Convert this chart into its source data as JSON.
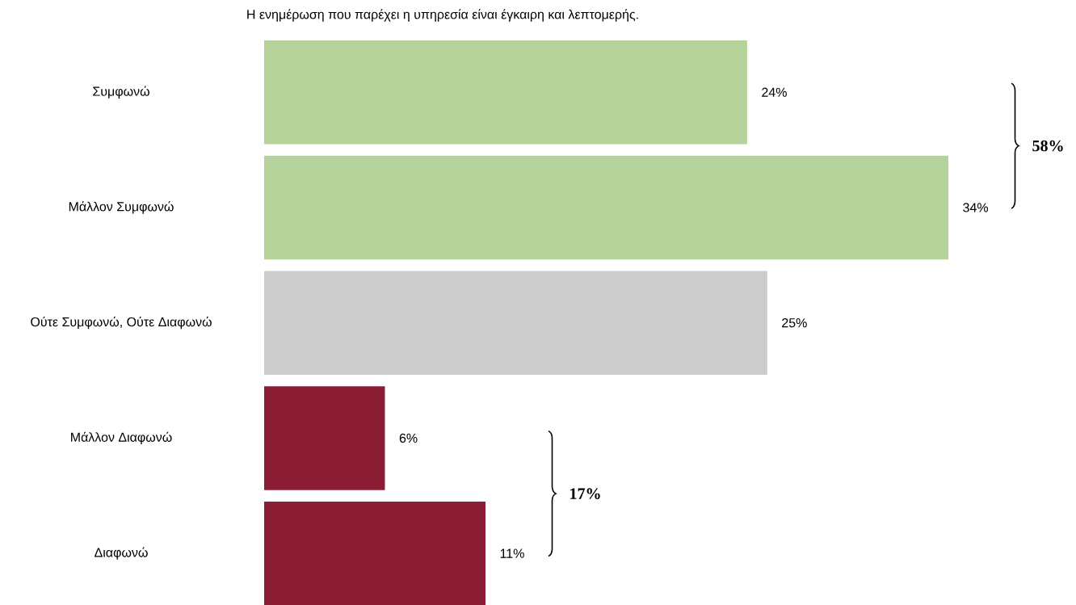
{
  "chart_data": {
    "type": "bar",
    "orientation": "horizontal",
    "title": "Η ενημέρωση που παρέχει η υπηρεσία είναι έγκαιρη και λεπτομερής.",
    "categories": [
      "Συμφωνώ",
      "Μάλλον Συμφωνώ",
      "Ούτε Συμφωνώ, Ούτε Διαφωνώ",
      "Μάλλον Διαφωνώ",
      "Διαφωνώ"
    ],
    "values": [
      24,
      34,
      25,
      6,
      11
    ],
    "colors": [
      "#b5d29b",
      "#b5d29b",
      "#cccccc",
      "#8a1c34",
      "#8a1c34"
    ],
    "value_labels": [
      "24%",
      "34%",
      "25%",
      "6%",
      "11%"
    ],
    "tick_labels": "y",
    "annotations": [
      "58%",
      "17%"
    ]
  }
}
